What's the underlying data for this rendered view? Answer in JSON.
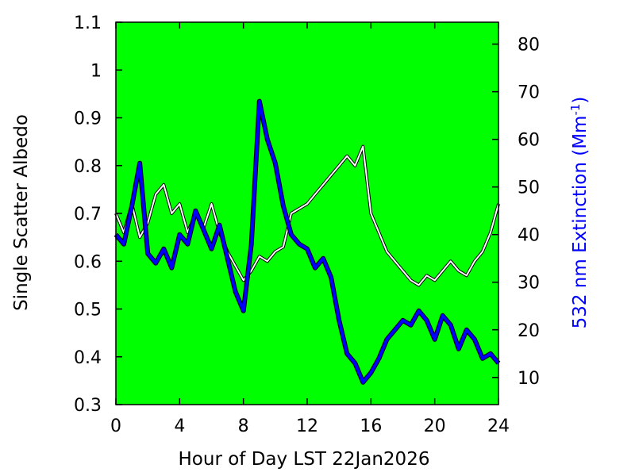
{
  "chart_data": {
    "type": "line",
    "xlabel": "Hour of Day LST 22Jan2026",
    "ylabel_left": "Single Scatter Albedo",
    "ylabel_right_prefix": "532 nm Extinction (Mm",
    "ylabel_right_sup": "-1",
    "ylabel_right_suffix": ")",
    "xlim": [
      0,
      24
    ],
    "ylim_left": [
      0.3,
      1.1
    ],
    "ylim_right": [
      4.3,
      84.6
    ],
    "x_ticks": [
      "0",
      "4",
      "8",
      "12",
      "16",
      "20",
      "24"
    ],
    "y_left_ticks": [
      "0.3",
      "0.4",
      "0.5",
      "0.6",
      "0.7",
      "0.8",
      "0.9",
      "1",
      "1.1"
    ],
    "y_right_ticks": [
      "10",
      "20",
      "30",
      "40",
      "50",
      "60",
      "70",
      "80"
    ],
    "grid": false,
    "colors": {
      "plot_background": "#00ff00",
      "albedo_line": "#ffffff",
      "albedo_outline": "#000000",
      "extinction_line": "#0000ff",
      "right_label": "#0000ff"
    },
    "series": [
      {
        "axis": "left",
        "x": [
          0,
          0.5,
          1,
          1.5,
          2,
          2.5,
          3,
          3.5,
          4,
          4.5,
          5,
          5.5,
          6,
          6.5,
          7,
          7.5,
          8,
          8.5,
          9,
          9.5,
          10,
          10.5,
          11,
          11.5,
          12,
          12.5,
          13,
          13.5,
          14,
          14.5,
          15,
          15.5,
          16,
          16.5,
          17,
          17.5,
          18,
          18.5,
          19,
          19.5,
          20,
          20.5,
          21,
          21.5,
          22,
          22.5,
          23,
          23.5,
          24
        ],
        "values": [
          0.7,
          0.66,
          0.72,
          0.65,
          0.68,
          0.74,
          0.76,
          0.7,
          0.72,
          0.66,
          0.7,
          0.67,
          0.72,
          0.66,
          0.62,
          0.59,
          0.56,
          0.58,
          0.61,
          0.6,
          0.62,
          0.63,
          0.7,
          0.71,
          0.72,
          0.74,
          0.76,
          0.78,
          0.8,
          0.82,
          0.8,
          0.84,
          0.7,
          0.66,
          0.62,
          0.6,
          0.58,
          0.56,
          0.55,
          0.57,
          0.56,
          0.58,
          0.6,
          0.58,
          0.57,
          0.6,
          0.62,
          0.66,
          0.72
        ]
      },
      {
        "axis": "right",
        "x": [
          0,
          0.5,
          1,
          1.5,
          2,
          2.5,
          3,
          3.5,
          4,
          4.5,
          5,
          5.5,
          6,
          6.5,
          7,
          7.5,
          8,
          8.5,
          9,
          9.5,
          10,
          10.5,
          11,
          11.5,
          12,
          12.5,
          13,
          13.5,
          14,
          14.5,
          15,
          15.5,
          16,
          16.5,
          17,
          17.5,
          18,
          18.5,
          19,
          19.5,
          20,
          20.5,
          21,
          21.5,
          22,
          22.5,
          23,
          23.5,
          24
        ],
        "values": [
          40,
          38,
          46,
          55,
          36,
          34,
          37,
          33,
          40,
          38,
          45,
          41,
          37,
          42,
          35,
          28,
          24,
          38,
          68,
          60,
          55,
          46,
          40,
          38,
          37,
          33,
          35,
          31,
          22,
          15,
          13,
          9,
          11,
          14,
          18,
          20,
          22,
          21,
          24,
          22,
          18,
          23,
          21,
          16,
          20,
          18,
          14,
          15,
          13
        ]
      }
    ]
  }
}
